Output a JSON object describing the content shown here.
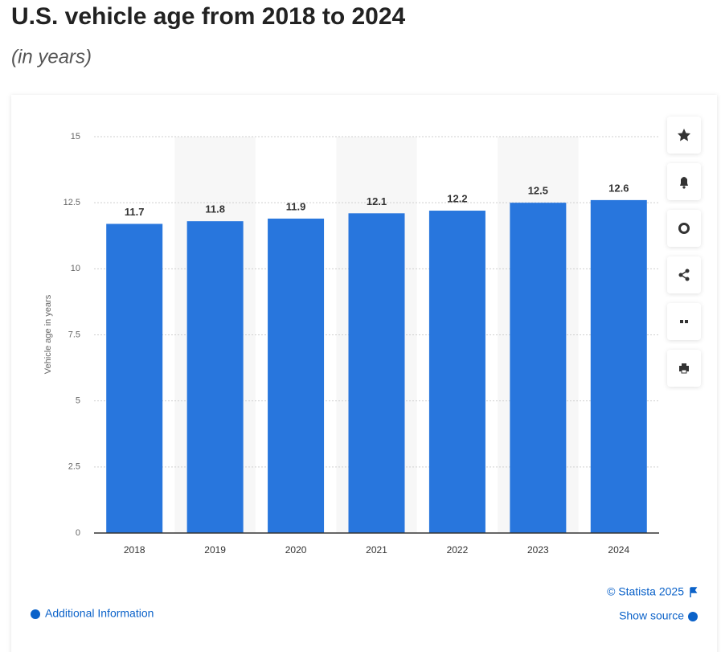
{
  "chart_data": {
    "type": "bar",
    "title": "U.S. vehicle age from 2018 to 2024",
    "subtitle": "(in years)",
    "y_label": "Vehicle age in years",
    "categories": [
      "2018",
      "2019",
      "2020",
      "2021",
      "2022",
      "2023",
      "2024"
    ],
    "values": [
      11.7,
      11.8,
      11.9,
      12.1,
      12.2,
      12.5,
      12.6
    ],
    "color": "#2876dd",
    "ylim": [
      0,
      15
    ],
    "yticks": [
      0,
      2.5,
      5,
      7.5,
      10,
      12.5,
      15
    ],
    "grid": true,
    "credit": "© Statista 2025",
    "links": [
      "Additional Information",
      "Show source"
    ]
  }
}
